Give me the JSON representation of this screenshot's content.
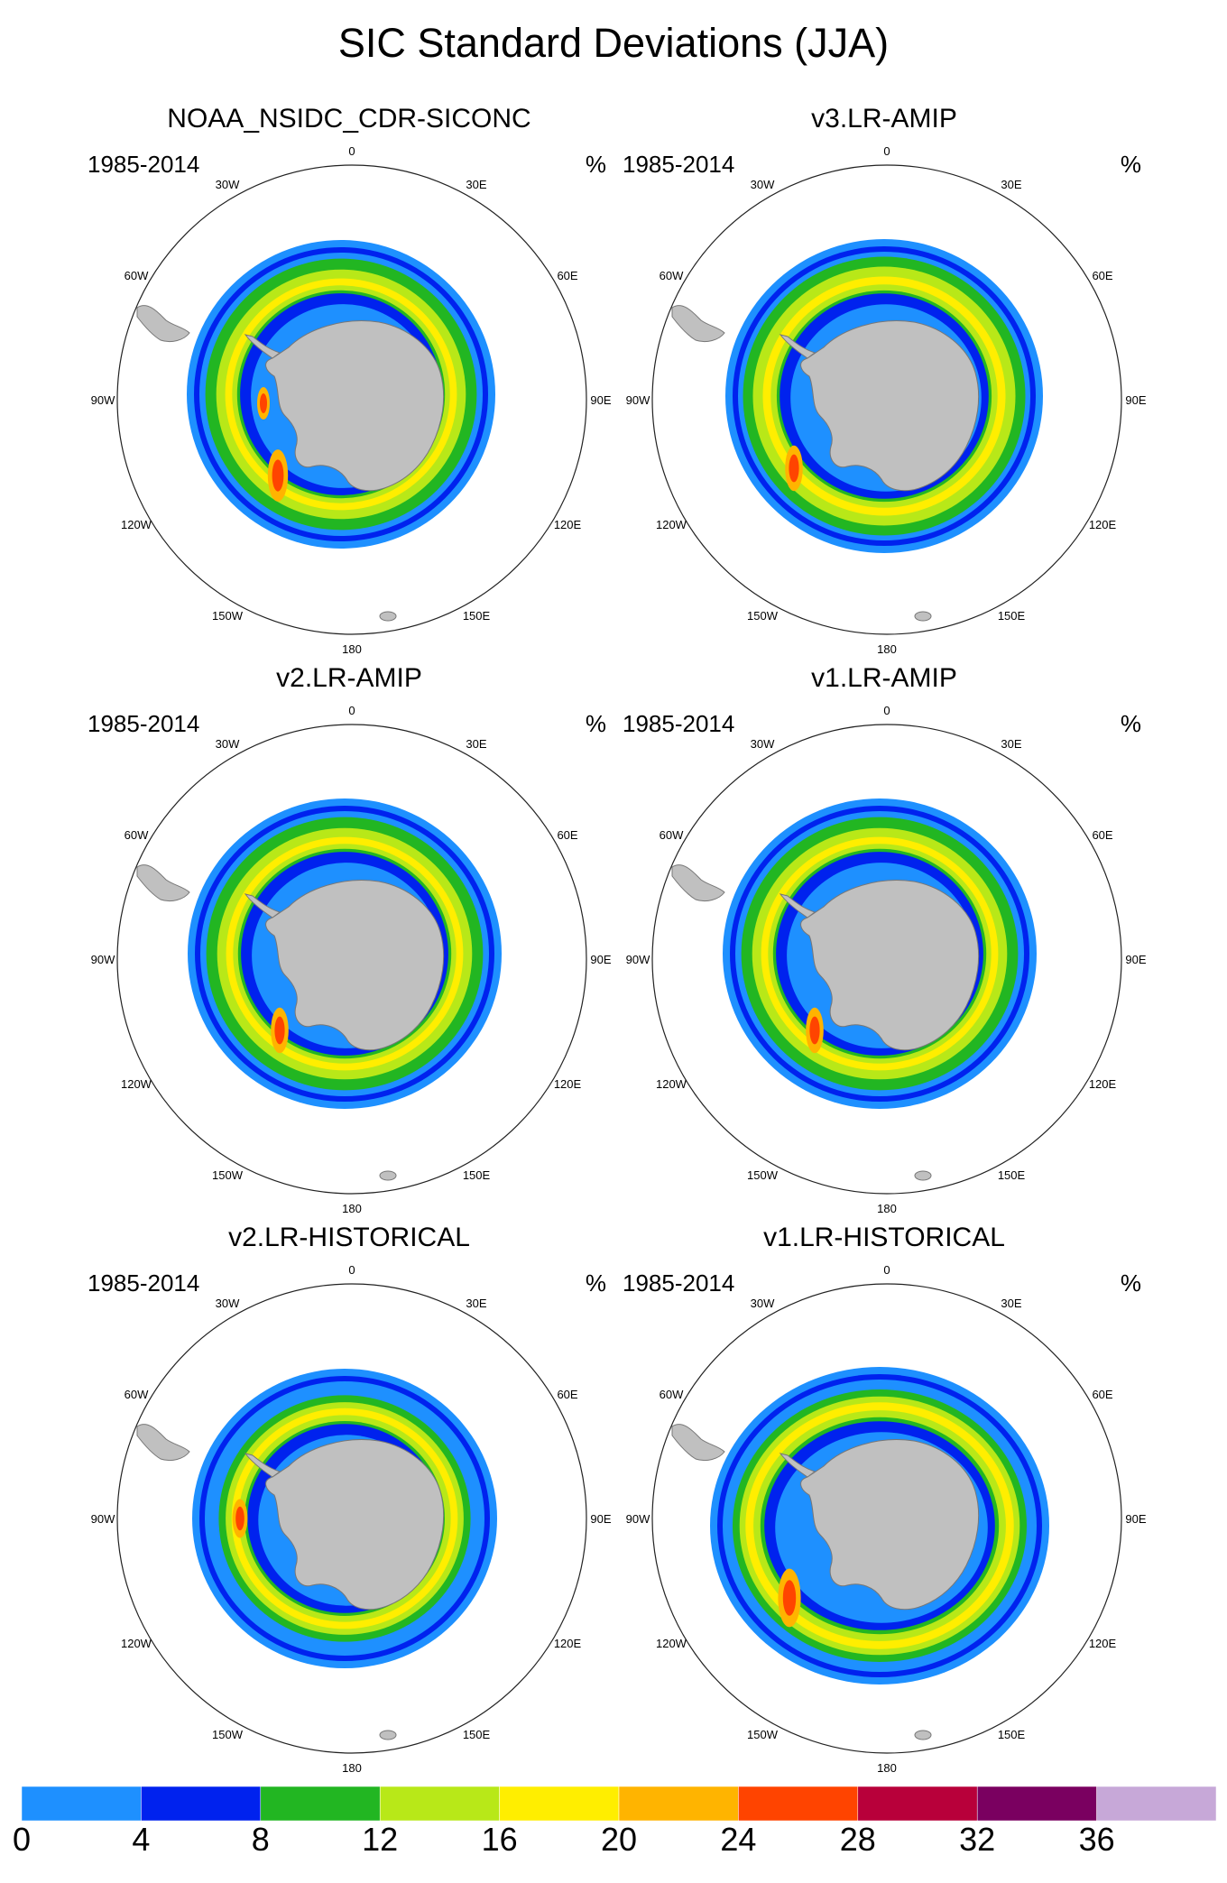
{
  "title": "SIC Standard Deviations (JJA)",
  "panels": [
    {
      "title": "NOAA_NSIDC_CDR-SICONC",
      "period": "1985-2014",
      "unit": "%"
    },
    {
      "title": "v3.LR-AMIP",
      "period": "1985-2014",
      "unit": "%"
    },
    {
      "title": "v2.LR-AMIP",
      "period": "1985-2014",
      "unit": "%"
    },
    {
      "title": "v1.LR-AMIP",
      "period": "1985-2014",
      "unit": "%"
    },
    {
      "title": "v2.LR-HISTORICAL",
      "period": "1985-2014",
      "unit": "%"
    },
    {
      "title": "v1.LR-HISTORICAL",
      "period": "1985-2014",
      "unit": "%"
    }
  ],
  "longitude_labels": [
    "0",
    "30E",
    "60E",
    "90E",
    "120E",
    "150E",
    "180",
    "150W",
    "120W",
    "90W",
    "60W",
    "30W"
  ],
  "colorbar": {
    "colors": [
      "#1e90ff",
      "#0022ee",
      "#22b622",
      "#b8e818",
      "#ffee00",
      "#ffb400",
      "#ff4400",
      "#b8003a",
      "#7a0060",
      "#c7a8d8"
    ],
    "labels": [
      "0",
      "4",
      "8",
      "12",
      "16",
      "20",
      "24",
      "28",
      "32",
      "36"
    ]
  },
  "colors": {
    "land": "#c0c0c0",
    "coast": "#777777",
    "frame": "#222222"
  }
}
